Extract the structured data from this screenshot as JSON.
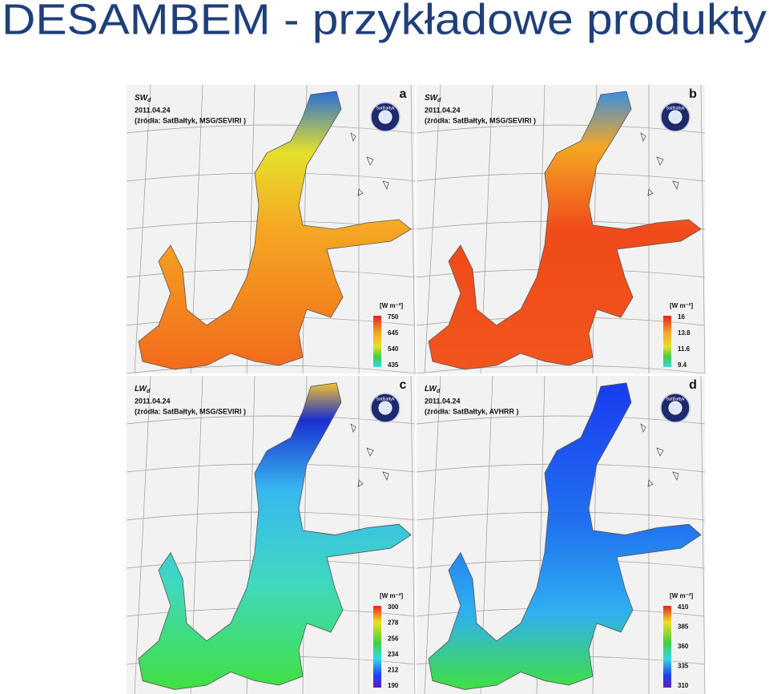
{
  "title": "DESAMBEM - przykładowe produkty",
  "panels": [
    {
      "letter": "a",
      "variable": "SW",
      "subscript": "d",
      "date": "2011.04.24",
      "source": "(źródła: SatBałtyk, MSG/SEVIRI )",
      "logo": "SatBałtyk",
      "unit": "[W m⁻²]",
      "legend_ticks": [
        750,
        645,
        540,
        435
      ]
    },
    {
      "letter": "b",
      "variable": "SW",
      "subscript": "d",
      "date": "2011.04.24",
      "source": "(źródła: SatBałtyk, MSG/SEVIRI )",
      "logo": "SatBałtyk",
      "unit": "[W m⁻²]",
      "legend_ticks": [
        16,
        13.8,
        11.6,
        9.4
      ]
    },
    {
      "letter": "c",
      "variable": "LW",
      "subscript": "d",
      "date": "2011.04.24",
      "source": "(źródła: SatBałtyk, MSG/SEVIRI )",
      "logo": "SatBałtyk",
      "unit": "[W m⁻²]",
      "legend_ticks": [
        300,
        278,
        256,
        234,
        212,
        190
      ]
    },
    {
      "letter": "d",
      "variable": "LW",
      "subscript": "d",
      "date": "2011.04.24",
      "source": "(źródła: SatBałtyk, AVHRR )",
      "logo": "SatBałtyk",
      "unit": "[W m⁻²]",
      "legend_ticks": [
        410,
        385,
        360,
        335,
        310
      ]
    }
  ]
}
